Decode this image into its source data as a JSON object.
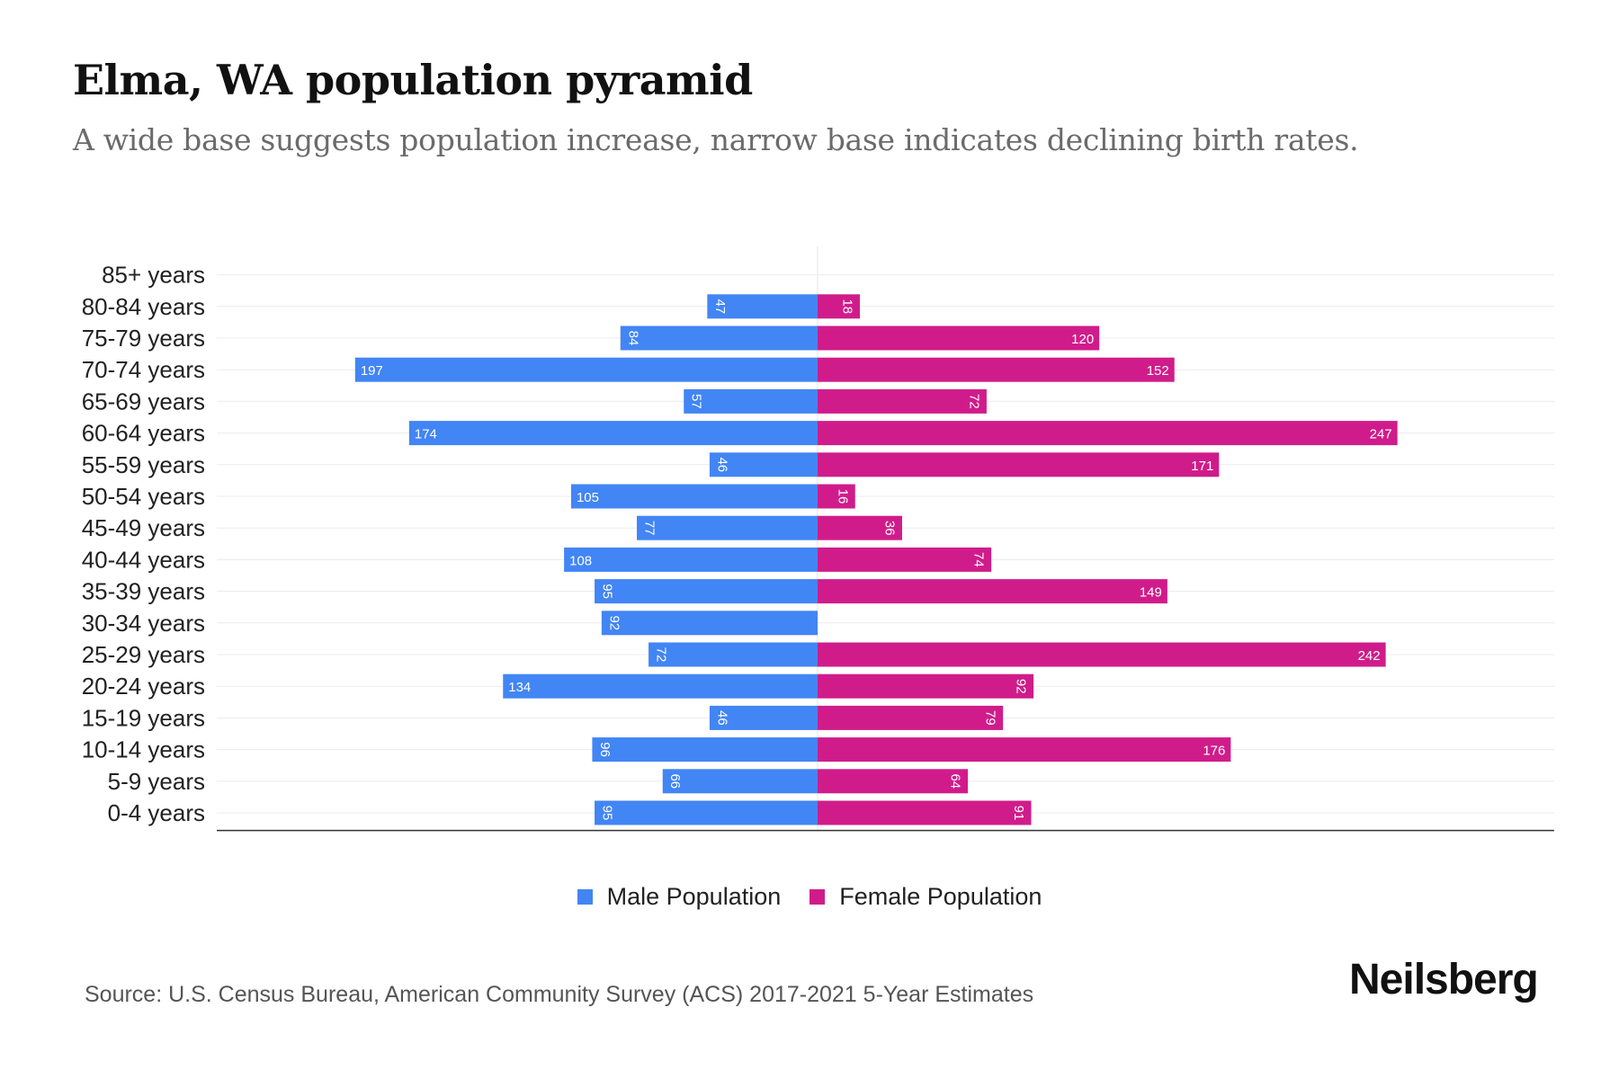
{
  "title": "Elma, WA population pyramid",
  "subtitle": "A wide base suggests population increase, narrow base indicates declining birth rates.",
  "source": "Source: U.S. Census Bureau, American Community Survey (ACS) 2017-2021 5-Year Estimates",
  "brand": "Neilsberg",
  "colors": {
    "male": "#4285f4",
    "female": "#d01c8b"
  },
  "chart_data": {
    "type": "bar",
    "orientation": "horizontal-pyramid",
    "categories": [
      "85+ years",
      "80-84 years",
      "75-79 years",
      "70-74 years",
      "65-69 years",
      "60-64 years",
      "55-59 years",
      "50-54 years",
      "45-49 years",
      "40-44 years",
      "35-39 years",
      "30-34 years",
      "25-29 years",
      "20-24 years",
      "15-19 years",
      "10-14 years",
      "5-9 years",
      "0-4 years"
    ],
    "series": [
      {
        "name": "Male Population",
        "values": [
          0,
          47,
          84,
          197,
          57,
          174,
          46,
          105,
          77,
          108,
          95,
          92,
          72,
          134,
          46,
          96,
          66,
          95
        ]
      },
      {
        "name": "Female Population",
        "values": [
          0,
          18,
          120,
          152,
          72,
          247,
          171,
          16,
          36,
          74,
          149,
          0,
          242,
          92,
          79,
          176,
          64,
          91
        ]
      }
    ],
    "xlim": [
      -222,
      272
    ],
    "grid": true,
    "legend": "bottom-center"
  }
}
